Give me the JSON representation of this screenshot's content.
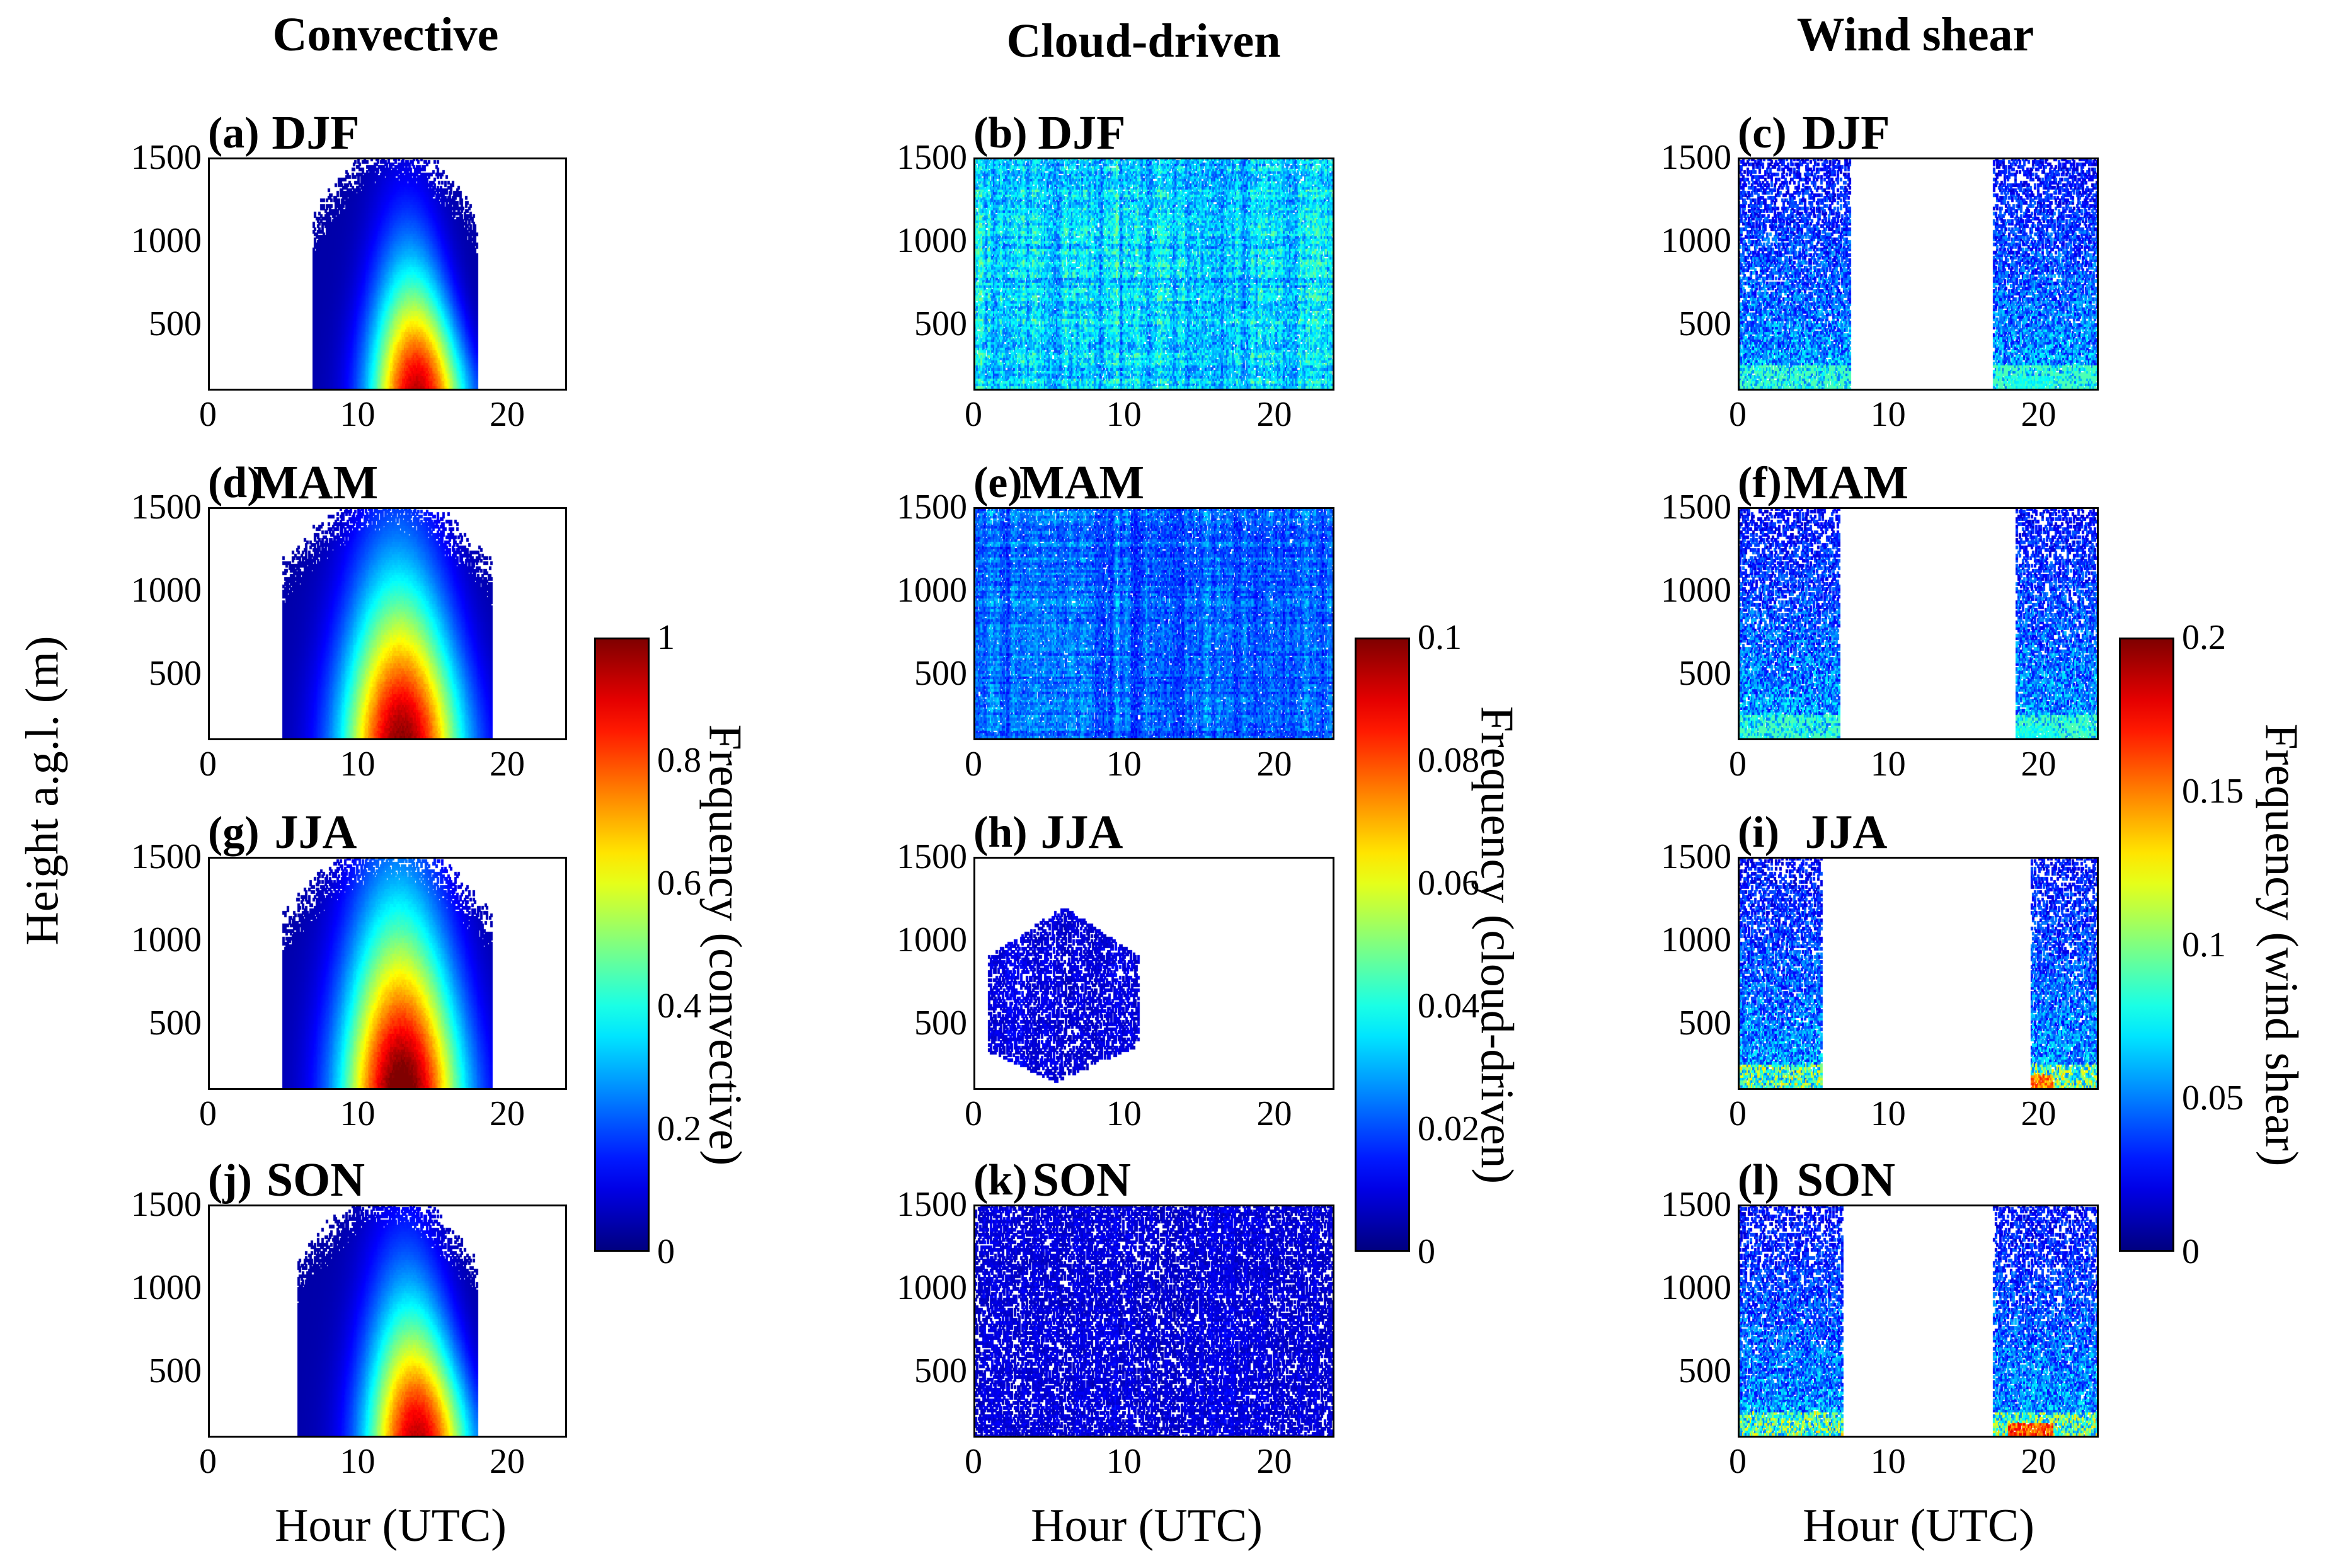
{
  "figure": {
    "column_titles": [
      "Convective",
      "Cloud-driven",
      "Wind shear"
    ],
    "y_axis_label": "Height a.g.l. (m)",
    "x_axis_label": "Hour (UTC)"
  },
  "colorbars": [
    {
      "label": "Frequency (convective)",
      "ticks": [
        "0",
        "0.2",
        "0.4",
        "0.6",
        "0.8",
        "1"
      ],
      "vmax": 1
    },
    {
      "label": "Frequency (cloud-driven)",
      "ticks": [
        "0",
        "0.02",
        "0.04",
        "0.06",
        "0.08",
        "0.1"
      ],
      "vmax": 0.1
    },
    {
      "label": "Frequency (wind shear)",
      "ticks": [
        "0",
        "0.05",
        "0.1",
        "0.15",
        "0.2"
      ],
      "vmax": 0.2
    }
  ],
  "colormap": "jet",
  "chart_data": [
    {
      "type": "heatmap",
      "panel": "(a)",
      "season": "DJF",
      "category": "convective",
      "colorbar": 0,
      "xlim": [
        0,
        24
      ],
      "ylim": [
        100,
        1500
      ],
      "xticks": [
        "0",
        "10",
        "20"
      ],
      "yticks": [
        "500",
        "1000",
        "1500"
      ],
      "active_hours": [
        7,
        18
      ],
      "peak_hour": 14,
      "peak_height": 300,
      "max_value": 0.9
    },
    {
      "type": "heatmap",
      "panel": "(d)",
      "season": "MAM",
      "category": "convective",
      "colorbar": 0,
      "xlim": [
        0,
        24
      ],
      "ylim": [
        100,
        1500
      ],
      "xticks": [
        "0",
        "10",
        "20"
      ],
      "yticks": [
        "500",
        "1000",
        "1500"
      ],
      "active_hours": [
        5,
        19
      ],
      "peak_hour": 13,
      "peak_height": 500,
      "max_value": 0.95
    },
    {
      "type": "heatmap",
      "panel": "(g)",
      "season": "JJA",
      "category": "convective",
      "colorbar": 0,
      "xlim": [
        0,
        24
      ],
      "ylim": [
        100,
        1500
      ],
      "xticks": [
        "0",
        "10",
        "20"
      ],
      "yticks": [
        "500",
        "1000",
        "1500"
      ],
      "active_hours": [
        5,
        19
      ],
      "peak_hour": 13,
      "peak_height": 600,
      "max_value": 1.0
    },
    {
      "type": "heatmap",
      "panel": "(j)",
      "season": "SON",
      "category": "convective",
      "colorbar": 0,
      "xlim": [
        0,
        24
      ],
      "ylim": [
        100,
        1500
      ],
      "xticks": [
        "0",
        "10",
        "20"
      ],
      "yticks": [
        "500",
        "1000",
        "1500"
      ],
      "active_hours": [
        6,
        18
      ],
      "peak_hour": 14,
      "peak_height": 400,
      "max_value": 0.9
    },
    {
      "type": "heatmap",
      "panel": "(b)",
      "season": "DJF",
      "category": "cloud-driven",
      "colorbar": 1,
      "xlim": [
        0,
        24
      ],
      "ylim": [
        100,
        1500
      ],
      "xticks": [
        "0",
        "10",
        "20"
      ],
      "yticks": [
        "500",
        "1000",
        "1500"
      ],
      "active_hours": [
        0,
        24
      ],
      "typical_value": 0.03,
      "max_value": 0.05
    },
    {
      "type": "heatmap",
      "panel": "(e)",
      "season": "MAM",
      "category": "cloud-driven",
      "colorbar": 1,
      "xlim": [
        0,
        24
      ],
      "ylim": [
        100,
        1500
      ],
      "xticks": [
        "0",
        "10",
        "20"
      ],
      "yticks": [
        "500",
        "1000",
        "1500"
      ],
      "active_hours": [
        0,
        24
      ],
      "typical_value": 0.02,
      "max_value": 0.04
    },
    {
      "type": "heatmap",
      "panel": "(h)",
      "season": "JJA",
      "category": "cloud-driven",
      "colorbar": 1,
      "xlim": [
        0,
        24
      ],
      "ylim": [
        100,
        1500
      ],
      "xticks": [
        "0",
        "10",
        "20"
      ],
      "yticks": [
        "500",
        "1000",
        "1500"
      ],
      "active_hours": [
        0,
        11
      ],
      "typical_value": 0.008,
      "max_value": 0.015
    },
    {
      "type": "heatmap",
      "panel": "(k)",
      "season": "SON",
      "category": "cloud-driven",
      "colorbar": 1,
      "xlim": [
        0,
        24
      ],
      "ylim": [
        100,
        1500
      ],
      "xticks": [
        "0",
        "10",
        "20"
      ],
      "yticks": [
        "500",
        "1000",
        "1500"
      ],
      "active_hours": [
        0,
        24
      ],
      "typical_value": 0.008,
      "max_value": 0.015
    },
    {
      "type": "heatmap",
      "panel": "(c)",
      "season": "DJF",
      "category": "wind shear",
      "colorbar": 2,
      "xlim": [
        0,
        24
      ],
      "ylim": [
        100,
        1500
      ],
      "xticks": [
        "0",
        "10",
        "20"
      ],
      "yticks": [
        "500",
        "1000",
        "1500"
      ],
      "active_hours": [
        [
          0,
          7.5
        ],
        [
          17,
          24
        ]
      ],
      "typical_value": 0.04,
      "max_value": 0.09
    },
    {
      "type": "heatmap",
      "panel": "(f)",
      "season": "MAM",
      "category": "wind shear",
      "colorbar": 2,
      "xlim": [
        0,
        24
      ],
      "ylim": [
        100,
        1500
      ],
      "xticks": [
        "0",
        "10",
        "20"
      ],
      "yticks": [
        "500",
        "1000",
        "1500"
      ],
      "active_hours": [
        [
          0,
          6.8
        ],
        [
          18.5,
          24
        ]
      ],
      "typical_value": 0.04,
      "max_value": 0.09
    },
    {
      "type": "heatmap",
      "panel": "(i)",
      "season": "JJA",
      "category": "wind shear",
      "colorbar": 2,
      "xlim": [
        0,
        24
      ],
      "ylim": [
        100,
        1500
      ],
      "xticks": [
        "0",
        "10",
        "20"
      ],
      "yticks": [
        "500",
        "1000",
        "1500"
      ],
      "active_hours": [
        [
          0,
          5.6
        ],
        [
          19.5,
          24
        ]
      ],
      "typical_value": 0.04,
      "max_value": 0.17
    },
    {
      "type": "heatmap",
      "panel": "(l)",
      "season": "SON",
      "category": "wind shear",
      "colorbar": 2,
      "xlim": [
        0,
        24
      ],
      "ylim": [
        100,
        1500
      ],
      "xticks": [
        "0",
        "10",
        "20"
      ],
      "yticks": [
        "500",
        "1000",
        "1500"
      ],
      "active_hours": [
        [
          0,
          7
        ],
        [
          17,
          24
        ]
      ],
      "typical_value": 0.04,
      "max_value": 0.18
    }
  ]
}
